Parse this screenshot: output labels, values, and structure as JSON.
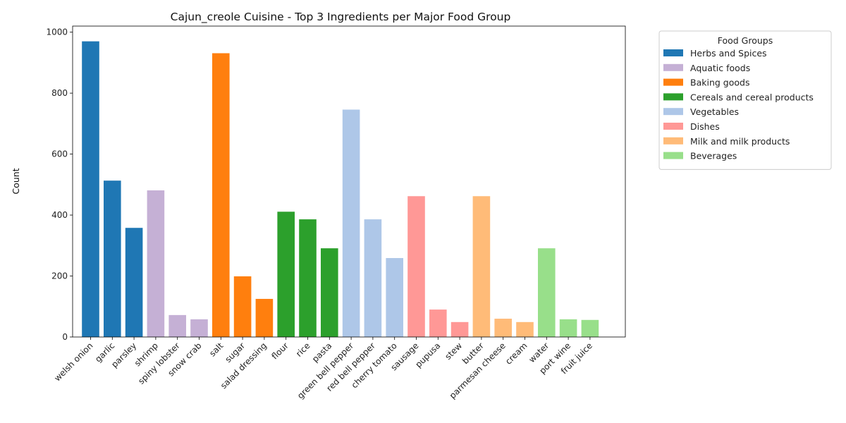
{
  "chart_data": {
    "type": "bar",
    "title": "Cajun_creole Cuisine - Top 3 Ingredients per Major Food Group",
    "xlabel": "",
    "ylabel": "Count",
    "ylim": [
      0,
      1020
    ],
    "yticks": [
      0,
      200,
      400,
      600,
      800,
      1000
    ],
    "grid": false,
    "legend": {
      "title": "Food Groups",
      "placement": "outside-top-right"
    },
    "groups": [
      {
        "name": "Herbs and Spices",
        "color": "#1f77b4",
        "items": [
          {
            "label": "welsh onion",
            "value": 970
          },
          {
            "label": "garlic",
            "value": 513
          },
          {
            "label": "parsley",
            "value": 358
          }
        ]
      },
      {
        "name": "Aquatic foods",
        "color": "#c5b0d5",
        "items": [
          {
            "label": "shrimp",
            "value": 481
          },
          {
            "label": "spiny lobster",
            "value": 72
          },
          {
            "label": "snow crab",
            "value": 58
          }
        ]
      },
      {
        "name": "Baking goods",
        "color": "#ff7f0e",
        "items": [
          {
            "label": "salt",
            "value": 931
          },
          {
            "label": "sugar",
            "value": 199
          },
          {
            "label": "salad dressing",
            "value": 125
          }
        ]
      },
      {
        "name": "Cereals and cereal products",
        "color": "#2ca02c",
        "items": [
          {
            "label": "flour",
            "value": 411
          },
          {
            "label": "rice",
            "value": 386
          },
          {
            "label": "pasta",
            "value": 291
          }
        ]
      },
      {
        "name": "Vegetables",
        "color": "#aec7e8",
        "items": [
          {
            "label": "green bell pepper",
            "value": 746
          },
          {
            "label": "red bell pepper",
            "value": 386
          },
          {
            "label": "cherry tomato",
            "value": 259
          }
        ]
      },
      {
        "name": "Dishes",
        "color": "#ff9896",
        "items": [
          {
            "label": "sausage",
            "value": 462
          },
          {
            "label": "pupusa",
            "value": 90
          },
          {
            "label": "stew",
            "value": 49
          }
        ]
      },
      {
        "name": "Milk and milk products",
        "color": "#ffbb78",
        "items": [
          {
            "label": "butter",
            "value": 462
          },
          {
            "label": "parmesan cheese",
            "value": 60
          },
          {
            "label": "cream",
            "value": 49
          }
        ]
      },
      {
        "name": "Beverages",
        "color": "#98df8a",
        "items": [
          {
            "label": "water",
            "value": 291
          },
          {
            "label": "port wine",
            "value": 58
          },
          {
            "label": "fruit juice",
            "value": 56
          }
        ]
      }
    ]
  }
}
